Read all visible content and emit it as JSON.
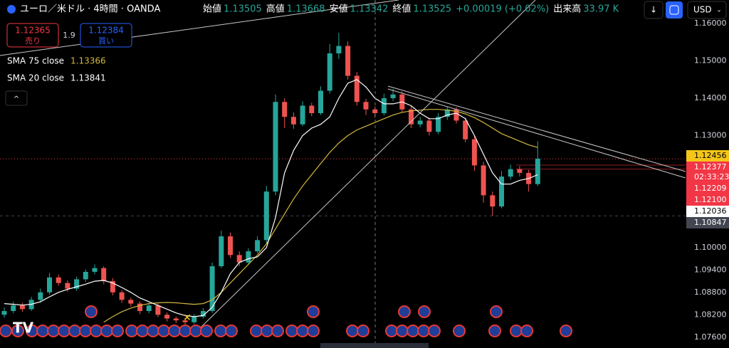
{
  "toolbar": {
    "title": "ユーロ／米ドル · 4時間 · OANDA",
    "ohlc": [
      {
        "name": "始値",
        "value": 1.13505
      },
      {
        "name": "高値",
        "value": 1.13668
      },
      {
        "name": "安値",
        "value": 1.13342
      },
      {
        "name": "終値",
        "value": 1.13525
      }
    ],
    "change": "+0.00019 (+0.02%)",
    "volume_name": "出来高",
    "volume": "33.97 K",
    "sell_price": 1.12365,
    "sell_label": "売り",
    "spread": 1.9,
    "buy_price": 1.12384,
    "buy_label": "買い",
    "currency": "USD"
  },
  "chart_data": {
    "type": "candlestick",
    "ylim": [
      1.0731,
      1.1663
    ],
    "yticks": [
      {
        "value": 1.16,
        "label": "1.16000"
      },
      {
        "value": 1.15,
        "label": "1.15000"
      },
      {
        "value": 1.14,
        "label": "1.14000"
      },
      {
        "value": 1.13,
        "label": "1.13000"
      },
      {
        "value": 1.1,
        "label": "1.10000"
      },
      {
        "value": 1.094,
        "label": "1.09400"
      },
      {
        "value": 1.088,
        "label": "1.08800"
      },
      {
        "value": 1.082,
        "label": "1.08200"
      },
      {
        "value": 1.076,
        "label": "1.07600"
      }
    ],
    "grid": false,
    "up_color": "#26a69a",
    "down_color": "#ef5350",
    "open": [
      1.082,
      1.083,
      1.0845,
      1.0835,
      1.086,
      1.088,
      1.092,
      1.0905,
      1.089,
      1.0915,
      1.0935,
      1.0945,
      1.091,
      1.088,
      1.086,
      1.085,
      1.083,
      1.0845,
      1.082,
      1.081,
      1.0805,
      1.08,
      1.0815,
      1.083,
      1.095,
      1.103,
      1.098,
      1.096,
      1.099,
      1.102,
      1.115,
      1.139,
      1.135,
      1.133,
      1.138,
      1.136,
      1.142,
      1.152,
      1.154,
      1.146,
      1.139,
      1.137,
      1.136,
      1.14,
      1.141,
      1.137,
      1.133,
      1.134,
      1.131,
      1.135,
      1.137,
      1.134,
      1.129,
      1.122,
      1.114,
      1.111,
      1.119,
      1.121,
      1.12,
      1.117
    ],
    "high": [
      1.084,
      1.0855,
      1.0852,
      1.0868,
      1.089,
      1.0932,
      1.0928,
      1.0912,
      1.0922,
      1.0942,
      1.0955,
      1.095,
      1.0918,
      1.0886,
      1.0866,
      1.0856,
      1.0852,
      1.085,
      1.0826,
      1.0815,
      1.0812,
      1.0822,
      1.0838,
      1.096,
      1.1045,
      1.104,
      1.099,
      1.0998,
      1.103,
      1.1165,
      1.141,
      1.14,
      1.1362,
      1.1392,
      1.1388,
      1.1432,
      1.1545,
      1.1575,
      1.1552,
      1.147,
      1.1398,
      1.1378,
      1.1412,
      1.1425,
      1.1418,
      1.138,
      1.135,
      1.1348,
      1.136,
      1.1378,
      1.1376,
      1.1348,
      1.1298,
      1.123,
      1.115,
      1.1205,
      1.1222,
      1.1218,
      1.1208,
      1.1285
    ],
    "low": [
      1.0812,
      1.0824,
      1.0828,
      1.083,
      1.0852,
      1.0874,
      1.0898,
      1.0882,
      1.0884,
      1.0908,
      1.0928,
      1.0902,
      1.0872,
      1.0852,
      1.0842,
      1.0822,
      1.0824,
      1.0814,
      1.0802,
      1.0798,
      1.0792,
      1.0795,
      1.081,
      1.0825,
      1.0945,
      1.0972,
      1.095,
      1.0955,
      1.0985,
      1.1012,
      1.114,
      1.132,
      1.1318,
      1.1325,
      1.1352,
      1.1355,
      1.1412,
      1.1505,
      1.145,
      1.138,
      1.1355,
      1.1348,
      1.1354,
      1.1392,
      1.1362,
      1.132,
      1.1322,
      1.13,
      1.1304,
      1.1342,
      1.1332,
      1.1282,
      1.1205,
      1.112,
      1.1085,
      1.1105,
      1.1182,
      1.119,
      1.115,
      1.1165
    ],
    "close": [
      1.083,
      1.0845,
      1.0835,
      1.086,
      1.088,
      1.092,
      1.0905,
      1.089,
      1.0915,
      1.0935,
      1.0945,
      1.091,
      1.088,
      1.086,
      1.085,
      1.083,
      1.0845,
      1.082,
      1.081,
      1.0805,
      1.08,
      1.0815,
      1.083,
      1.095,
      1.103,
      1.098,
      1.096,
      1.099,
      1.102,
      1.115,
      1.139,
      1.135,
      1.133,
      1.138,
      1.136,
      1.142,
      1.152,
      1.154,
      1.146,
      1.139,
      1.137,
      1.136,
      1.14,
      1.141,
      1.137,
      1.133,
      1.134,
      1.131,
      1.135,
      1.137,
      1.134,
      1.129,
      1.122,
      1.114,
      1.111,
      1.119,
      1.121,
      1.12,
      1.117,
      1.1238
    ],
    "series": [
      {
        "name": "SMA 75 close",
        "color": "#d4b83c",
        "legend_value": 1.13366,
        "values": [
          null,
          null,
          null,
          null,
          null,
          null,
          null,
          null,
          null,
          null,
          null,
          1.08,
          1.0815,
          1.0828,
          1.0838,
          1.0845,
          1.085,
          1.0852,
          1.0853,
          1.0852,
          1.085,
          1.0848,
          1.085,
          1.086,
          1.088,
          1.0905,
          1.093,
          1.0955,
          1.098,
          1.101,
          1.105,
          1.109,
          1.113,
          1.1165,
          1.1195,
          1.1225,
          1.1255,
          1.128,
          1.13,
          1.1315,
          1.1325,
          1.1335,
          1.1345,
          1.1355,
          1.1362,
          1.1366,
          1.1368,
          1.137,
          1.137,
          1.1368,
          1.1365,
          1.1358,
          1.1348,
          1.1335,
          1.132,
          1.1305,
          1.1295,
          1.1285,
          1.1275,
          1.1268
        ]
      },
      {
        "name": "SMA 20 close",
        "color": "#ffffff",
        "legend_value": 1.13841,
        "values": [
          1.085,
          1.0848,
          1.0846,
          1.0848,
          1.0855,
          1.0868,
          1.088,
          1.0888,
          1.0895,
          1.0902,
          1.091,
          1.0912,
          1.0905,
          1.0893,
          1.088,
          1.0865,
          1.0855,
          1.0845,
          1.0835,
          1.0825,
          1.0818,
          1.0815,
          1.0818,
          1.084,
          1.088,
          1.093,
          1.096,
          1.097,
          1.0975,
          1.1,
          1.108,
          1.12,
          1.126,
          1.13,
          1.132,
          1.133,
          1.135,
          1.14,
          1.144,
          1.145,
          1.143,
          1.14,
          1.1385,
          1.1385,
          1.139,
          1.138,
          1.136,
          1.1345,
          1.1345,
          1.1355,
          1.136,
          1.1345,
          1.13,
          1.125,
          1.12,
          1.117,
          1.117,
          1.118,
          1.1185,
          1.1195
        ]
      }
    ],
    "price_labels": [
      {
        "value": 1.12456,
        "color": "#f5c518",
        "text_color": "#000000"
      },
      {
        "value": 1.12377,
        "color": "#f23645",
        "text_color": "#ffffff",
        "countdown": "02:33:23",
        "line": "dotted"
      },
      {
        "value": 1.12209,
        "color": "#f23645",
        "text_color": "#ffffff",
        "line": "solid"
      },
      {
        "value": 1.121,
        "label": "1.12100",
        "color": "#f23645",
        "text_color": "#ffffff",
        "line": "solid"
      },
      {
        "value": 1.12036,
        "color": "#ffffff",
        "text_color": "#000000"
      },
      {
        "value": 1.10847,
        "color": "#434651",
        "text_color": "#ffffff",
        "line": "dashed"
      }
    ]
  }
}
